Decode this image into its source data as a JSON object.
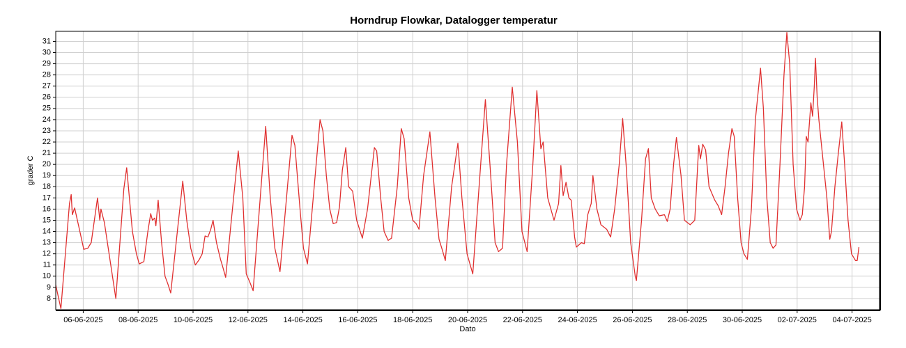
{
  "chart_data": {
    "type": "line",
    "title": "Horndrup Flowkar, Datalogger temperatur",
    "x_label": "Dato",
    "y_label": "grader C",
    "grid": true,
    "xlim": [
      "2025-06-05 00:00",
      "2025-07-05 00:00"
    ],
    "ylim": [
      7,
      31.9
    ],
    "yticks": [
      8,
      9,
      10,
      11,
      12,
      13,
      14,
      15,
      16,
      17,
      18,
      19,
      20,
      21,
      22,
      23,
      24,
      25,
      26,
      27,
      28,
      29,
      30,
      31
    ],
    "xticks": [
      {
        "value": "2025-06-06 00:00",
        "label": "06-06-2025"
      },
      {
        "value": "2025-06-08 00:00",
        "label": "08-06-2025"
      },
      {
        "value": "2025-06-10 00:00",
        "label": "10-06-2025"
      },
      {
        "value": "2025-06-12 00:00",
        "label": "12-06-2025"
      },
      {
        "value": "2025-06-14 00:00",
        "label": "14-06-2025"
      },
      {
        "value": "2025-06-16 00:00",
        "label": "16-06-2025"
      },
      {
        "value": "2025-06-18 00:00",
        "label": "18-06-2025"
      },
      {
        "value": "2025-06-20 00:00",
        "label": "20-06-2025"
      },
      {
        "value": "2025-06-22 00:00",
        "label": "22-06-2025"
      },
      {
        "value": "2025-06-24 00:00",
        "label": "24-06-2025"
      },
      {
        "value": "2025-06-26 00:00",
        "label": "26-06-2025"
      },
      {
        "value": "2025-06-28 00:00",
        "label": "28-06-2025"
      },
      {
        "value": "2025-06-30 00:00",
        "label": "30-06-2025"
      },
      {
        "value": "2025-07-02 00:00",
        "label": "02-07-2025"
      },
      {
        "value": "2025-07-04 00:00",
        "label": "04-07-2025"
      }
    ],
    "x": [
      "2025-06-05 00:00",
      "2025-06-05 04:30",
      "2025-06-05 12:00",
      "2025-06-05 13:30",
      "2025-06-05 14:30",
      "2025-06-05 16:30",
      "2025-06-05 20:00",
      "2025-06-06 00:30",
      "2025-06-06 04:00",
      "2025-06-06 07:00",
      "2025-06-06 12:30",
      "2025-06-06 14:30",
      "2025-06-06 15:30",
      "2025-06-06 18:30",
      "2025-06-07 04:30",
      "2025-06-07 11:30",
      "2025-06-07 14:00",
      "2025-06-07 19:00",
      "2025-06-07 22:30",
      "2025-06-08 01:00",
      "2025-06-08 05:00",
      "2025-06-08 08:30",
      "2025-06-08 11:00",
      "2025-06-08 12:30",
      "2025-06-08 14:30",
      "2025-06-08 15:30",
      "2025-06-08 17:30",
      "2025-06-08 20:30",
      "2025-06-08 23:30",
      "2025-06-09 02:00",
      "2025-06-09 04:30",
      "2025-06-09 15:00",
      "2025-06-09 18:30",
      "2025-06-09 22:00",
      "2025-06-10 02:00",
      "2025-06-10 05:30",
      "2025-06-10 08:00",
      "2025-06-10 10:30",
      "2025-06-10 13:00",
      "2025-06-10 15:30",
      "2025-06-10 17:30",
      "2025-06-10 20:30",
      "2025-06-11 00:00",
      "2025-06-11 01:30",
      "2025-06-11 04:30",
      "2025-06-11 15:30",
      "2025-06-11 19:30",
      "2025-06-11 22:30",
      "2025-06-12 01:30",
      "2025-06-12 04:30",
      "2025-06-12 15:30",
      "2025-06-12 19:30",
      "2025-06-12 23:30",
      "2025-06-13 04:00",
      "2025-06-13 14:30",
      "2025-06-13 17:00",
      "2025-06-13 21:30",
      "2025-06-14 00:30",
      "2025-06-14 04:00",
      "2025-06-14 15:00",
      "2025-06-14 17:30",
      "2025-06-14 20:30",
      "2025-06-14 23:30",
      "2025-06-15 02:30",
      "2025-06-15 05:30",
      "2025-06-15 08:00",
      "2025-06-15 10:30",
      "2025-06-15 13:30",
      "2025-06-15 16:00",
      "2025-06-15 19:30",
      "2025-06-15 23:00",
      "2025-06-16 04:00",
      "2025-06-16 08:30",
      "2025-06-16 14:30",
      "2025-06-16 16:30",
      "2025-06-16 20:00",
      "2025-06-16 23:00",
      "2025-06-17 02:30",
      "2025-06-17 05:30",
      "2025-06-17 10:30",
      "2025-06-17 14:00",
      "2025-06-17 16:30",
      "2025-06-17 20:30",
      "2025-06-18 00:00",
      "2025-06-18 03:00",
      "2025-06-18 05:30",
      "2025-06-18 09:30",
      "2025-06-18 15:00",
      "2025-06-18 19:30",
      "2025-06-18 23:00",
      "2025-06-19 02:00",
      "2025-06-19 04:30",
      "2025-06-19 10:00",
      "2025-06-19 15:30",
      "2025-06-19 19:00",
      "2025-06-19 23:30",
      "2025-06-20 04:30",
      "2025-06-20 15:30",
      "2025-06-20 19:30",
      "2025-06-21 00:00",
      "2025-06-21 03:00",
      "2025-06-21 06:30",
      "2025-06-21 10:00",
      "2025-06-21 15:00",
      "2025-06-21 19:30",
      "2025-06-21 23:30",
      "2025-06-22 04:00",
      "2025-06-22 09:00",
      "2025-06-22 12:30",
      "2025-06-22 16:00",
      "2025-06-22 18:00",
      "2025-06-22 22:00",
      "2025-06-23 03:30",
      "2025-06-23 07:30",
      "2025-06-23 09:30",
      "2025-06-23 11:30",
      "2025-06-23 14:00",
      "2025-06-23 16:30",
      "2025-06-23 18:30",
      "2025-06-23 21:30",
      "2025-06-23 23:00",
      "2025-06-24 03:30",
      "2025-06-24 06:00",
      "2025-06-24 09:00",
      "2025-06-24 12:00",
      "2025-06-24 13:30",
      "2025-06-24 17:00",
      "2025-06-24 20:30",
      "2025-06-25 01:30",
      "2025-06-25 05:00",
      "2025-06-25 08:30",
      "2025-06-25 12:30",
      "2025-06-25 15:30",
      "2025-06-25 18:30",
      "2025-06-25 22:30",
      "2025-06-26 02:30",
      "2025-06-26 03:30",
      "2025-06-26 08:00",
      "2025-06-26 11:30",
      "2025-06-26 14:00",
      "2025-06-26 16:30",
      "2025-06-26 20:00",
      "2025-06-26 23:30",
      "2025-06-27 04:00",
      "2025-06-27 06:30",
      "2025-06-27 09:00",
      "2025-06-27 12:00",
      "2025-06-27 14:30",
      "2025-06-27 18:30",
      "2025-06-27 21:30",
      "2025-06-28 02:30",
      "2025-06-28 06:30",
      "2025-06-28 10:00",
      "2025-06-28 11:30",
      "2025-06-28 13:30",
      "2025-06-28 16:00",
      "2025-06-28 19:00",
      "2025-06-29 00:00",
      "2025-06-29 03:00",
      "2025-06-29 06:00",
      "2025-06-29 09:00",
      "2025-06-29 12:00",
      "2025-06-29 15:00",
      "2025-06-29 17:00",
      "2025-06-29 20:00",
      "2025-06-29 23:00",
      "2025-06-30 01:30",
      "2025-06-30 04:30",
      "2025-06-30 08:00",
      "2025-06-30 11:30",
      "2025-06-30 16:00",
      "2025-06-30 18:30",
      "2025-06-30 21:30",
      "2025-07-01 00:30",
      "2025-07-01 03:00",
      "2025-07-01 05:30",
      "2025-07-01 09:00",
      "2025-07-01 12:30",
      "2025-07-01 15:00",
      "2025-07-01 17:30",
      "2025-07-01 20:30",
      "2025-07-01 23:30",
      "2025-07-02 02:30",
      "2025-07-02 04:30",
      "2025-07-02 06:30",
      "2025-07-02 08:00",
      "2025-07-02 09:30",
      "2025-07-02 12:00",
      "2025-07-02 13:30",
      "2025-07-02 15:00",
      "2025-07-02 16:00",
      "2025-07-02 17:30",
      "2025-07-02 19:00",
      "2025-07-02 23:00",
      "2025-07-03 02:00",
      "2025-07-03 04:30",
      "2025-07-03 06:00",
      "2025-07-03 09:00",
      "2025-07-03 12:00",
      "2025-07-03 15:00",
      "2025-07-03 17:30",
      "2025-07-03 20:30",
      "2025-07-03 23:30",
      "2025-07-04 03:00",
      "2025-07-04 04:30",
      "2025-07-04 06:00"
    ],
    "series": [
      {
        "color": "#e03030",
        "values": [
          9.2,
          7.1,
          16.5,
          17.3,
          15.5,
          16.1,
          14.5,
          12.4,
          12.5,
          13.0,
          17.0,
          15.0,
          16.0,
          14.8,
          8.0,
          17.8,
          19.7,
          14.0,
          12.0,
          11.1,
          11.3,
          14.0,
          15.6,
          15.0,
          15.2,
          14.5,
          16.8,
          13.0,
          10.0,
          9.3,
          8.5,
          18.5,
          15.0,
          12.5,
          11.0,
          11.5,
          12.0,
          13.6,
          13.5,
          14.2,
          15.0,
          13.0,
          11.5,
          11.0,
          9.9,
          21.2,
          17.0,
          10.2,
          9.5,
          8.7,
          23.4,
          17.0,
          12.5,
          10.4,
          22.6,
          21.7,
          16.0,
          12.5,
          11.1,
          24.0,
          23.0,
          19.0,
          16.0,
          14.7,
          14.8,
          16.2,
          19.5,
          21.5,
          18.0,
          17.6,
          15.0,
          13.4,
          16.0,
          21.5,
          21.2,
          17.0,
          14.0,
          13.2,
          13.4,
          18.0,
          23.2,
          22.3,
          17.0,
          15.0,
          14.7,
          14.2,
          19.0,
          22.9,
          17.0,
          13.3,
          12.3,
          11.4,
          18.0,
          21.9,
          17.0,
          12.0,
          10.2,
          25.8,
          20.0,
          13.0,
          12.2,
          12.5,
          20.0,
          26.9,
          22.0,
          14.0,
          12.2,
          20.0,
          26.6,
          21.4,
          22.0,
          17.0,
          15.0,
          16.5,
          19.9,
          17.2,
          18.4,
          17.0,
          16.8,
          13.5,
          12.6,
          13.0,
          12.9,
          15.5,
          16.5,
          19.0,
          16.0,
          14.6,
          14.2,
          13.5,
          16.0,
          20.0,
          24.1,
          20.0,
          13.0,
          10.0,
          9.6,
          15.0,
          20.5,
          21.4,
          17.0,
          16.0,
          15.4,
          15.5,
          14.9,
          16.0,
          20.0,
          22.4,
          19.0,
          15.0,
          14.6,
          15.0,
          21.7,
          20.5,
          21.8,
          21.3,
          18.0,
          16.8,
          16.3,
          15.5,
          18.0,
          21.0,
          23.2,
          22.5,
          17.0,
          13.0,
          12.0,
          11.5,
          16.0,
          24.0,
          28.6,
          25.0,
          17.0,
          13.0,
          12.5,
          12.8,
          20.0,
          28.0,
          31.8,
          29.0,
          20.0,
          16.0,
          15.0,
          15.5,
          18.0,
          22.5,
          22.0,
          25.5,
          24.3,
          27.0,
          29.5,
          26.0,
          24.0,
          20.0,
          17.0,
          13.3,
          14.0,
          18.0,
          21.0,
          23.8,
          20.0,
          15.0,
          12.0,
          11.4,
          11.4,
          12.6
        ]
      }
    ]
  }
}
